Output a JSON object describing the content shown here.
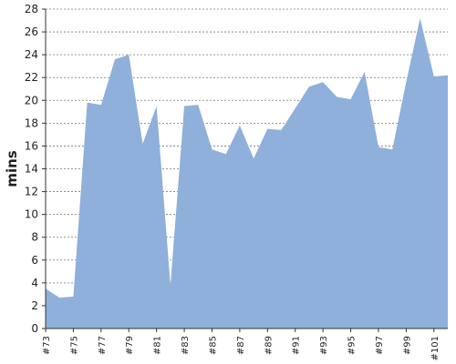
{
  "chart_data": {
    "type": "area",
    "title": "",
    "xlabel": "",
    "ylabel": "mins",
    "ylim": [
      0,
      28
    ],
    "yticks": [
      0,
      2,
      4,
      6,
      8,
      10,
      12,
      14,
      16,
      18,
      20,
      22,
      24,
      26,
      28
    ],
    "grid": true,
    "fill_color": "#8eb0da",
    "categories": [
      "#73",
      "#74",
      "#75",
      "#76",
      "#77",
      "#78",
      "#79",
      "#80",
      "#81",
      "#82",
      "#83",
      "#84",
      "#85",
      "#86",
      "#87",
      "#88",
      "#89",
      "#90",
      "#91",
      "#92",
      "#93",
      "#94",
      "#95",
      "#96",
      "#97",
      "#98",
      "#99",
      "#100",
      "#101",
      "#102"
    ],
    "x_tick_labels": [
      "#73",
      "#75",
      "#77",
      "#79",
      "#81",
      "#83",
      "#85",
      "#87",
      "#89",
      "#91",
      "#93",
      "#95",
      "#97",
      "#99",
      "#101"
    ],
    "values": [
      3.5,
      2.7,
      2.8,
      19.8,
      19.6,
      23.6,
      24.0,
      16.2,
      19.5,
      3.8,
      19.5,
      19.6,
      15.7,
      15.3,
      17.8,
      14.9,
      17.5,
      17.4,
      19.3,
      21.2,
      21.6,
      20.3,
      20.1,
      22.5,
      15.9,
      15.7,
      21.6,
      27.2,
      22.1,
      22.2
    ]
  }
}
